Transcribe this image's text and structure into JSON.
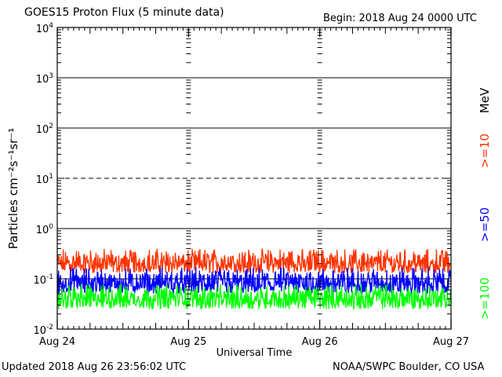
{
  "header": {
    "title": "GOES15 Proton Flux (5 minute data)",
    "begin": "Begin: 2018 Aug 24 0000 UTC"
  },
  "footer": {
    "updated": "Updated 2018 Aug 26 23:56:02 UTC",
    "credit": "NOAA/SWPC Boulder, CO USA"
  },
  "chart_data": {
    "type": "line",
    "title": "GOES15 Proton Flux (5 minute data)",
    "xlabel": "Universal Time",
    "ylabel": "Particles cm⁻²s⁻¹sr⁻¹",
    "yscale": "log",
    "ylim": [
      0.01,
      10000
    ],
    "xlim": [
      "2018-08-24 00:00",
      "2018-08-27 00:00"
    ],
    "x_tick_labels": [
      "Aug 24",
      "Aug 25",
      "Aug 26",
      "Aug 27"
    ],
    "y_tick_labels": [
      {
        "base": "10",
        "exp": "-2"
      },
      {
        "base": "10",
        "exp": "-1"
      },
      {
        "base": "10",
        "exp": "0"
      },
      {
        "base": "10",
        "exp": "1"
      },
      {
        "base": "10",
        "exp": "2"
      },
      {
        "base": "10",
        "exp": "3"
      },
      {
        "base": "10",
        "exp": "4"
      }
    ],
    "reference_lines": [
      {
        "y": 1000,
        "style": "solid"
      },
      {
        "y": 100,
        "style": "solid"
      },
      {
        "y": 10,
        "style": "dashed"
      },
      {
        "y": 1,
        "style": "solid"
      },
      {
        "y": 0.1,
        "style": "solid"
      }
    ],
    "unit_label": "MeV",
    "series": [
      {
        "name": ">=10",
        "color": "#ff3300",
        "y_min": 0.13,
        "y_typical": 0.2,
        "y_max": 0.4
      },
      {
        "name": ">=50",
        "color": "#0000ff",
        "y_min": 0.05,
        "y_typical": 0.08,
        "y_max": 0.17
      },
      {
        "name": ">=100",
        "color": "#00ff00",
        "y_min": 0.025,
        "y_typical": 0.04,
        "y_max": 0.08
      }
    ]
  }
}
